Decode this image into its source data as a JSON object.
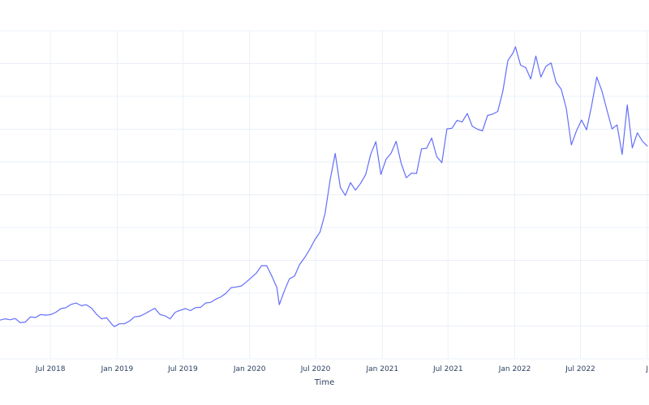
{
  "chart_data": {
    "type": "line",
    "xlabel": "Time",
    "ylabel": "",
    "title": "",
    "x_tick_labels": [
      "Jul 2018",
      "Jan 2019",
      "Jul 2019",
      "Jan 2020",
      "Jul 2020",
      "Jan 2021",
      "Jul 2021",
      "Jan 2022",
      "Jul 2022",
      "J"
    ],
    "x_tick_dates": [
      "2018-07-01",
      "2019-01-01",
      "2019-07-01",
      "2020-01-01",
      "2020-07-01",
      "2021-01-01",
      "2021-07-01",
      "2022-01-01",
      "2022-07-01",
      "2023-01-01"
    ],
    "xlim": [
      "2018-02-12",
      "2023-01-06"
    ],
    "grid": true,
    "line_color": "#636efa",
    "series": [
      {
        "x": [
          "2018-02-12",
          "2018-02-26",
          "2018-03-12",
          "2018-03-26",
          "2018-04-09",
          "2018-04-23",
          "2018-05-07",
          "2018-05-21",
          "2018-06-04",
          "2018-06-18",
          "2018-07-02",
          "2018-07-16",
          "2018-07-30",
          "2018-08-13",
          "2018-08-27",
          "2018-09-10",
          "2018-09-24",
          "2018-10-08",
          "2018-10-22",
          "2018-11-05",
          "2018-11-19",
          "2018-12-03",
          "2018-12-17",
          "2018-12-24",
          "2019-01-07",
          "2019-01-21",
          "2019-02-04",
          "2019-02-18",
          "2019-03-04",
          "2019-03-18",
          "2019-04-01",
          "2019-04-15",
          "2019-04-29",
          "2019-05-13",
          "2019-05-27",
          "2019-06-10",
          "2019-06-24",
          "2019-07-08",
          "2019-07-22",
          "2019-08-05",
          "2019-08-19",
          "2019-09-02",
          "2019-09-16",
          "2019-09-30",
          "2019-10-14",
          "2019-10-28",
          "2019-11-11",
          "2019-11-25",
          "2019-12-09",
          "2019-12-23",
          "2020-01-06",
          "2020-01-20",
          "2020-02-03",
          "2020-02-17",
          "2020-03-02",
          "2020-03-16",
          "2020-03-23",
          "2020-04-06",
          "2020-04-20",
          "2020-05-04",
          "2020-05-18",
          "2020-06-01",
          "2020-06-15",
          "2020-06-29",
          "2020-07-13",
          "2020-07-27",
          "2020-08-10",
          "2020-08-24",
          "2020-09-07",
          "2020-09-21",
          "2020-10-05",
          "2020-10-19",
          "2020-11-02",
          "2020-11-16",
          "2020-11-30",
          "2020-12-14",
          "2020-12-28",
          "2021-01-11",
          "2021-01-25",
          "2021-02-08",
          "2021-02-22",
          "2021-03-08",
          "2021-03-22",
          "2021-04-05",
          "2021-04-19",
          "2021-05-03",
          "2021-05-17",
          "2021-05-31",
          "2021-06-14",
          "2021-06-28",
          "2021-07-12",
          "2021-07-26",
          "2021-08-09",
          "2021-08-23",
          "2021-09-06",
          "2021-09-20",
          "2021-10-04",
          "2021-10-18",
          "2021-11-01",
          "2021-11-15",
          "2021-11-29",
          "2021-12-13",
          "2021-12-27",
          "2022-01-03",
          "2022-01-17",
          "2022-01-31",
          "2022-02-14",
          "2022-02-28",
          "2022-03-14",
          "2022-03-28",
          "2022-04-11",
          "2022-04-25",
          "2022-05-09",
          "2022-05-23",
          "2022-06-06",
          "2022-06-20",
          "2022-07-04",
          "2022-07-18",
          "2022-08-01",
          "2022-08-15",
          "2022-08-29",
          "2022-09-12",
          "2022-09-26",
          "2022-10-10",
          "2022-10-24",
          "2022-11-07",
          "2022-11-21",
          "2022-12-05",
          "2022-12-19",
          "2023-01-02"
        ],
        "y": [
          1.18,
          1.22,
          1.19,
          1.23,
          1.1,
          1.12,
          1.28,
          1.26,
          1.35,
          1.33,
          1.35,
          1.42,
          1.53,
          1.56,
          1.66,
          1.7,
          1.62,
          1.65,
          1.55,
          1.36,
          1.22,
          1.25,
          1.06,
          0.98,
          1.07,
          1.07,
          1.15,
          1.28,
          1.3,
          1.37,
          1.46,
          1.54,
          1.35,
          1.31,
          1.22,
          1.42,
          1.48,
          1.53,
          1.47,
          1.56,
          1.57,
          1.7,
          1.72,
          1.82,
          1.89,
          2.0,
          2.17,
          2.19,
          2.22,
          2.34,
          2.48,
          2.62,
          2.84,
          2.84,
          2.53,
          2.18,
          1.65,
          2.08,
          2.44,
          2.52,
          2.88,
          3.09,
          3.34,
          3.63,
          3.86,
          4.43,
          5.45,
          6.26,
          5.23,
          4.98,
          5.37,
          5.14,
          5.35,
          5.62,
          6.24,
          6.62,
          5.62,
          6.08,
          6.27,
          6.63,
          5.95,
          5.52,
          5.66,
          5.65,
          6.4,
          6.42,
          6.73,
          6.16,
          5.98,
          7.01,
          7.03,
          7.27,
          7.22,
          7.48,
          7.09,
          7.0,
          6.95,
          7.42,
          7.46,
          7.54,
          8.15,
          9.09,
          9.32,
          9.51,
          8.95,
          8.88,
          8.53,
          9.23,
          8.59,
          8.92,
          9.02,
          8.43,
          8.22,
          7.64,
          6.52,
          6.95,
          7.28,
          6.98,
          7.72,
          8.59,
          8.17,
          7.59,
          7.01,
          7.13,
          6.23,
          7.74,
          6.43,
          6.89,
          6.63,
          6.48
        ]
      }
    ],
    "ylim": [
      0.0,
      10.0
    ]
  }
}
